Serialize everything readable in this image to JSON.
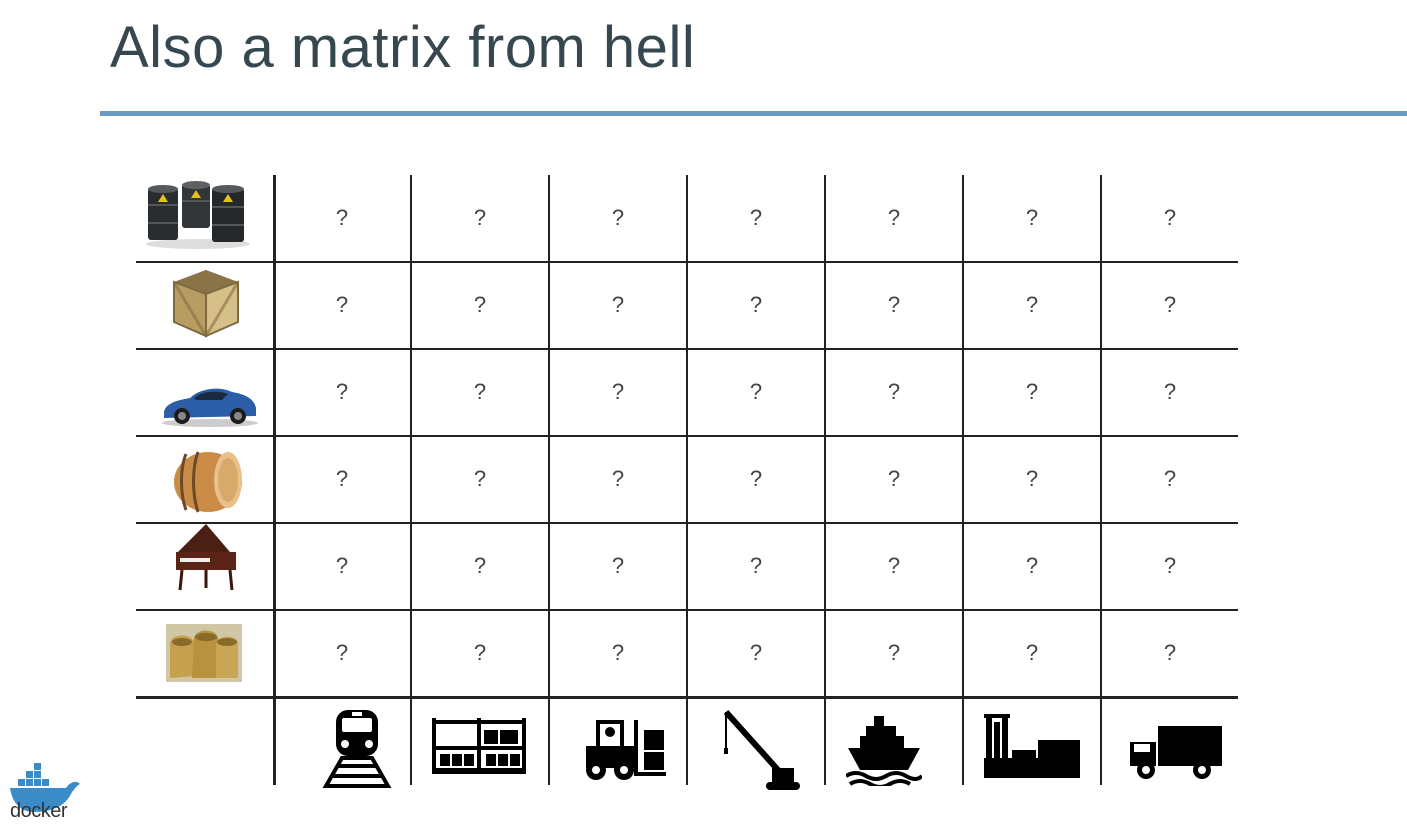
{
  "slide": {
    "title": "Also a matrix from hell",
    "accent_color": "#6a9bc3"
  },
  "rows": [
    {
      "icon": "oil-barrels-icon"
    },
    {
      "icon": "wooden-crate-icon"
    },
    {
      "icon": "sports-car-icon"
    },
    {
      "icon": "wine-barrel-icon"
    },
    {
      "icon": "grand-piano-icon"
    },
    {
      "icon": "grain-sacks-icon"
    }
  ],
  "columns": [
    {
      "icon": "train-icon"
    },
    {
      "icon": "warehouse-shelves-icon"
    },
    {
      "icon": "forklift-icon"
    },
    {
      "icon": "crane-icon"
    },
    {
      "icon": "ship-icon"
    },
    {
      "icon": "factory-icon"
    },
    {
      "icon": "truck-icon"
    }
  ],
  "cell_value": "?",
  "footer": {
    "logo_text": "docker",
    "logo_icon": "docker-whale-icon"
  }
}
